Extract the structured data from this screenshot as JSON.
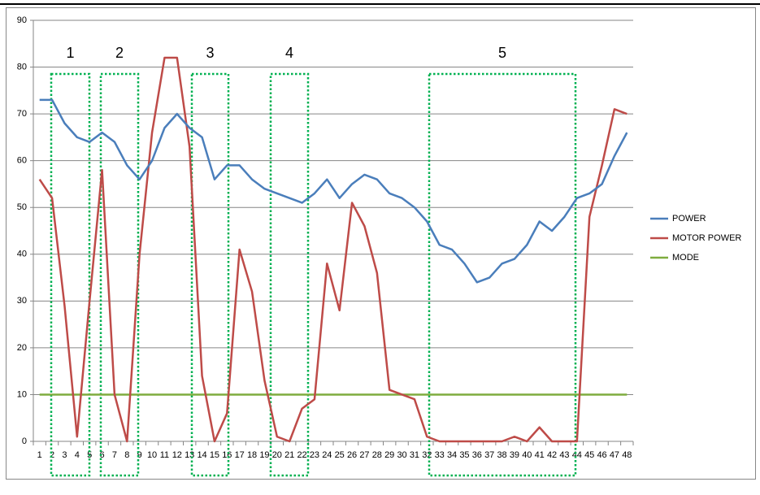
{
  "chart_data": {
    "type": "line",
    "categories": [
      1,
      2,
      3,
      4,
      5,
      6,
      7,
      8,
      9,
      10,
      11,
      12,
      13,
      14,
      15,
      16,
      17,
      18,
      19,
      20,
      21,
      22,
      23,
      24,
      25,
      26,
      27,
      28,
      29,
      30,
      31,
      32,
      33,
      34,
      35,
      36,
      37,
      38,
      39,
      40,
      41,
      42,
      43,
      44,
      45,
      46,
      47,
      48
    ],
    "series": [
      {
        "name": "POWER",
        "color": "#4a7ebb",
        "values": [
          73,
          73,
          68,
          65,
          64,
          66,
          64,
          59,
          56,
          60,
          67,
          70,
          67,
          65,
          56,
          59,
          59,
          56,
          54,
          53,
          52,
          51,
          53,
          56,
          52,
          55,
          57,
          56,
          53,
          52,
          50,
          47,
          42,
          41,
          38,
          34,
          35,
          38,
          39,
          42,
          47,
          45,
          48,
          52,
          53,
          55,
          61,
          66
        ]
      },
      {
        "name": "MOTOR POWER",
        "color": "#be4b48",
        "values": [
          56,
          52,
          29,
          1,
          30,
          58,
          10,
          0,
          40,
          66,
          82,
          82,
          63,
          14,
          0,
          6,
          41,
          32,
          13,
          1,
          0,
          7,
          9,
          38,
          28,
          51,
          46,
          36,
          11,
          10,
          9,
          1,
          0,
          0,
          0,
          0,
          0,
          0,
          1,
          0,
          3,
          0,
          0,
          0,
          48,
          59,
          71,
          70
        ]
      },
      {
        "name": "MODE",
        "color": "#7eac3e",
        "values": [
          10,
          10,
          10,
          10,
          10,
          10,
          10,
          10,
          10,
          10,
          10,
          10,
          10,
          10,
          10,
          10,
          10,
          10,
          10,
          10,
          10,
          10,
          10,
          10,
          10,
          10,
          10,
          10,
          10,
          10,
          10,
          10,
          10,
          10,
          10,
          10,
          10,
          10,
          10,
          10,
          10,
          10,
          10,
          10,
          10,
          10,
          10,
          10
        ]
      }
    ],
    "ylim": [
      0,
      90
    ],
    "yticks": [
      0,
      10,
      20,
      30,
      40,
      50,
      60,
      70,
      80,
      90
    ],
    "grid": true,
    "legend": "right",
    "annotations": [
      "1",
      "2",
      "3",
      "4",
      "5"
    ]
  }
}
